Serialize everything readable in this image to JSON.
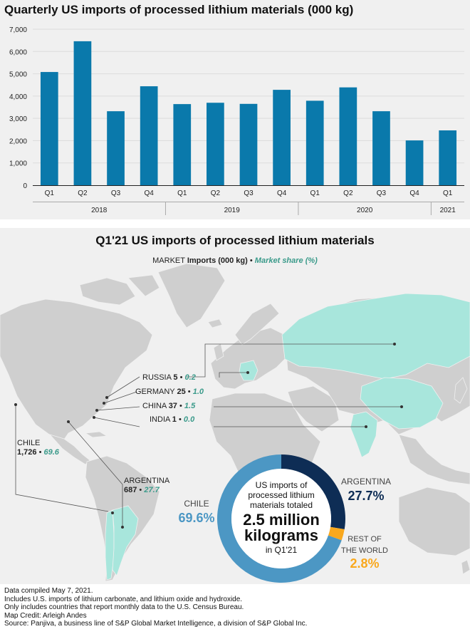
{
  "chart_data": [
    {
      "type": "bar",
      "title": "Quarterly US imports of processed lithium materials (000 kg)",
      "categories": [
        "Q1",
        "Q2",
        "Q3",
        "Q4",
        "Q1",
        "Q2",
        "Q3",
        "Q4",
        "Q1",
        "Q2",
        "Q3",
        "Q4",
        "Q1"
      ],
      "groups": [
        {
          "label": "2018",
          "count": 4
        },
        {
          "label": "2019",
          "count": 4
        },
        {
          "label": "2020",
          "count": 4
        },
        {
          "label": "2021",
          "count": 1
        }
      ],
      "values": [
        5080,
        6460,
        3320,
        4440,
        3640,
        3700,
        3650,
        4280,
        3790,
        4390,
        3320,
        2010,
        2460
      ],
      "yticks": [
        "0",
        "1,000",
        "2,000",
        "3,000",
        "4,000",
        "5,000",
        "6,000",
        "7,000"
      ],
      "ylim": [
        0,
        7000
      ],
      "color": "#0a79ab",
      "grid": true
    },
    {
      "type": "pie",
      "title": "Q1'21 US imports of processed lithium materials",
      "center_text": [
        "US imports of",
        "processed lithium",
        "materials totaled",
        "2.5 million",
        "kilograms",
        "in Q1'21"
      ],
      "slices": [
        {
          "label": "CHILE",
          "value": 69.6,
          "display": "69.6%",
          "color": "#4c97c4"
        },
        {
          "label": "ARGENTINA",
          "value": 27.7,
          "display": "27.7%",
          "color": "#0e2d55"
        },
        {
          "label": "REST OF THE WORLD",
          "label_lines": [
            "REST OF",
            "THE WORLD"
          ],
          "value": 2.8,
          "display": "2.8%",
          "color": "#f9a81d"
        }
      ]
    }
  ],
  "map": {
    "legend": {
      "market": "MARKET",
      "imports": "Imports (000 kg)",
      "bullet": "•",
      "share": "Market share (%)"
    },
    "callouts": [
      {
        "country": "RUSSIA",
        "imports": "5",
        "share": "0.2"
      },
      {
        "country": "GERMANY",
        "imports": "25",
        "share": "1.0"
      },
      {
        "country": "CHINA",
        "imports": "37",
        "share": "1.5"
      },
      {
        "country": "INDIA",
        "imports": "1",
        "share": "0.0"
      },
      {
        "country": "CHILE",
        "imports": "1,726",
        "share": "69.6"
      },
      {
        "country": "ARGENTINA",
        "imports": "687",
        "share": "27.7"
      }
    ],
    "bullet": "•"
  },
  "footer": [
    "Data compiled May 7, 2021.",
    "Includes U.S. imports of lithium carbonate, and lithium oxide and hydroxide.",
    "Only includes countries that report monthly data to the U.S. Census Bureau.",
    "Map Credit: Arleigh Andes",
    "Source: Panjiva, a business line of S&P Global Market Intelligence, a division of S&P Global Inc."
  ]
}
